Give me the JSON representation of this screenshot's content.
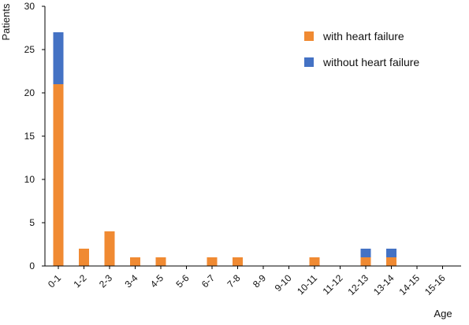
{
  "chart_data": {
    "type": "bar",
    "stacked": true,
    "title": "",
    "xlabel": "Age",
    "ylabel": "Patients",
    "ylim": [
      0,
      30
    ],
    "yticks": [
      "0",
      "5",
      "10",
      "15",
      "20",
      "25",
      "30"
    ],
    "grid": false,
    "legend_position": "top-right",
    "categories": [
      "0-1",
      "1-2",
      "2-3",
      "3-4",
      "4-5",
      "5-6",
      "6-7",
      "7-8",
      "8-9",
      "9-10",
      "10-11",
      "11-12",
      "12-13",
      "13-14",
      "14-15",
      "15-16"
    ],
    "series": [
      {
        "name": "with heart failure",
        "color": "#F08A32",
        "values": [
          21,
          2,
          4,
          1,
          1,
          0,
          1,
          1,
          0,
          0,
          1,
          0,
          1,
          1,
          0,
          0
        ]
      },
      {
        "name": "without heart failure",
        "color": "#4472C4",
        "values": [
          6,
          0,
          0,
          0,
          0,
          0,
          0,
          0,
          0,
          0,
          0,
          0,
          1,
          1,
          0,
          0
        ]
      }
    ]
  }
}
